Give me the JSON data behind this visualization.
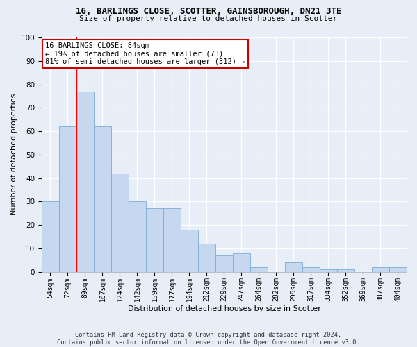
{
  "title1": "16, BARLINGS CLOSE, SCOTTER, GAINSBOROUGH, DN21 3TE",
  "title2": "Size of property relative to detached houses in Scotter",
  "xlabel": "Distribution of detached houses by size in Scotter",
  "ylabel": "Number of detached properties",
  "categories": [
    "54sqm",
    "72sqm",
    "89sqm",
    "107sqm",
    "124sqm",
    "142sqm",
    "159sqm",
    "177sqm",
    "194sqm",
    "212sqm",
    "229sqm",
    "247sqm",
    "264sqm",
    "282sqm",
    "299sqm",
    "317sqm",
    "334sqm",
    "352sqm",
    "369sqm",
    "387sqm",
    "404sqm"
  ],
  "values": [
    30,
    62,
    77,
    62,
    42,
    30,
    27,
    27,
    18,
    12,
    7,
    8,
    2,
    0,
    4,
    2,
    1,
    1,
    0,
    2,
    2
  ],
  "bar_color": "#c5d8f0",
  "bar_edge_color": "#7aadd4",
  "annotation_line1": "16 BARLINGS CLOSE: 84sqm",
  "annotation_line2": "← 19% of detached houses are smaller (73)",
  "annotation_line3": "81% of semi-detached houses are larger (312) →",
  "annotation_box_facecolor": "#ffffff",
  "annotation_box_edgecolor": "#cc0000",
  "redline_x": 1.5,
  "ylim": [
    0,
    100
  ],
  "yticks": [
    0,
    10,
    20,
    30,
    40,
    50,
    60,
    70,
    80,
    90,
    100
  ],
  "bg_color": "#e8eef8",
  "grid_color": "#d0d8e8",
  "title1_fontsize": 9,
  "title2_fontsize": 8,
  "xlabel_fontsize": 8,
  "ylabel_fontsize": 8,
  "tick_fontsize": 7,
  "footer": "Contains HM Land Registry data © Crown copyright and database right 2024.\nContains public sector information licensed under the Open Government Licence v3.0."
}
